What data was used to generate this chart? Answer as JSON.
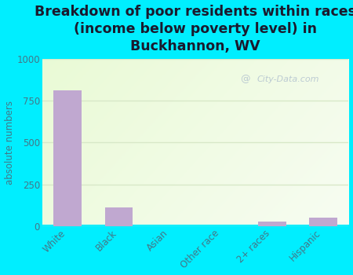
{
  "title": "Breakdown of poor residents within races\n(income below poverty level) in\nBuckhannon, WV",
  "categories": [
    "White",
    "Black",
    "Asian",
    "Other race",
    "2+ races",
    "Hispanic"
  ],
  "values": [
    810,
    110,
    0,
    0,
    25,
    50
  ],
  "bar_color": "#c0a8d0",
  "ylabel": "absolute numbers",
  "ylim": [
    0,
    1000
  ],
  "yticks": [
    0,
    250,
    500,
    750,
    1000
  ],
  "background_outer": "#00eeff",
  "title_fontsize": 12.5,
  "title_color": "#1a1a2e",
  "tick_color": "#447788",
  "watermark": "City-Data.com",
  "grid_color": "#d8e8c8"
}
